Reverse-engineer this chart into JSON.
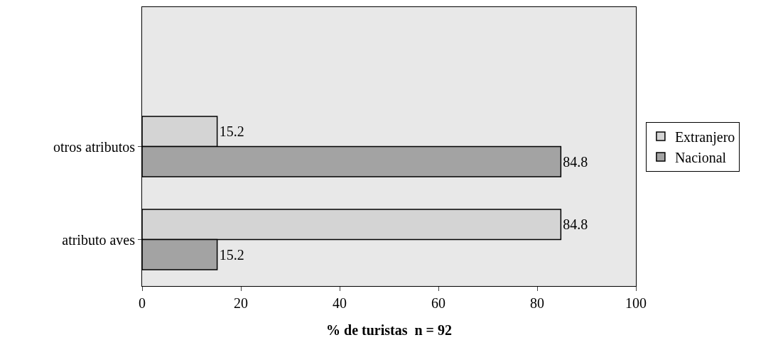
{
  "chart_data": {
    "type": "bar",
    "orientation": "horizontal",
    "categories": [
      null,
      "otros atributos",
      "atributo aves"
    ],
    "series": [
      {
        "name": "Extranjero",
        "color": "#d4d4d4",
        "values": [
          null,
          15.2,
          84.8
        ]
      },
      {
        "name": "Nacional",
        "color": "#a3a3a3",
        "values": [
          null,
          84.8,
          15.2
        ]
      }
    ],
    "xlim": [
      0,
      100
    ],
    "xticks": [
      0,
      20,
      40,
      60,
      80,
      100
    ],
    "xlabel": "% de turistas  n = 92",
    "data_labels": true,
    "legend": "right",
    "grid": false
  }
}
